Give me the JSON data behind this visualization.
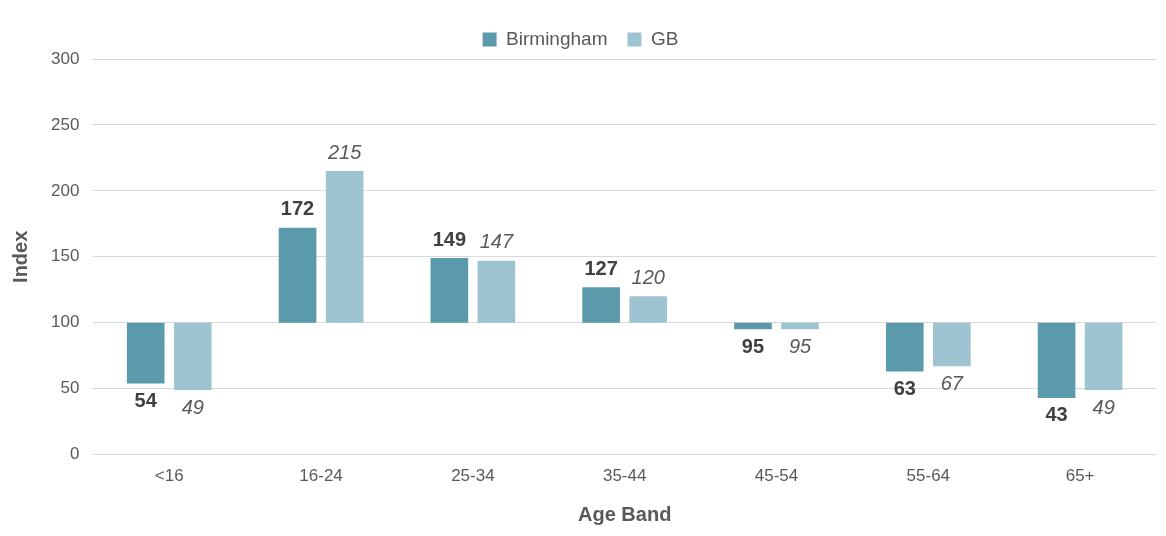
{
  "chart_data": {
    "type": "bar",
    "xlabel": "Age Band",
    "ylabel": "Index",
    "categories": [
      "<16",
      "16-24",
      "25-34",
      "35-44",
      "45-54",
      "55-64",
      "65+"
    ],
    "series": [
      {
        "name": "Birmingham",
        "color": "#5b9aab",
        "base": [
          100,
          100,
          100,
          100,
          100,
          100,
          100
        ],
        "values": [
          -46,
          72,
          49,
          27,
          -5,
          -37,
          -57
        ],
        "value_labels": [
          "54",
          "172",
          "149",
          "127",
          "95",
          "63",
          "43"
        ]
      },
      {
        "name": "GB",
        "color": "#9fc4d1",
        "base": [
          100,
          100,
          100,
          100,
          100,
          100,
          100
        ],
        "values": [
          -51,
          115,
          47,
          20,
          -5,
          -33,
          -51
        ],
        "value_labels": [
          "49",
          "215",
          "147",
          "120",
          "95",
          "67",
          "49"
        ]
      }
    ],
    "ylim": [
      0,
      300
    ],
    "yticks": [
      0,
      50,
      100,
      150,
      200,
      250,
      300
    ],
    "grid": "y",
    "legend": "top"
  }
}
